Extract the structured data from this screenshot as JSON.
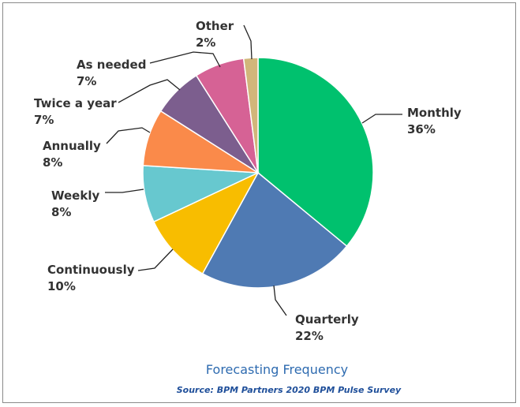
{
  "chart_data": {
    "type": "pie",
    "title": "Forecasting Frequency",
    "source": "Source: BPM Partners 2020 BPM Pulse Survey",
    "slices": [
      {
        "label": "Monthly",
        "value": 36,
        "value_label": "36%",
        "color": "#00c16e"
      },
      {
        "label": "Quarterly",
        "value": 22,
        "value_label": "22%",
        "color": "#4f7ab3"
      },
      {
        "label": "Continuously",
        "value": 10,
        "value_label": "10%",
        "color": "#f8bd00"
      },
      {
        "label": "Weekly",
        "value": 8,
        "value_label": "8%",
        "color": "#67c8cf"
      },
      {
        "label": "Annually",
        "value": 8,
        "value_label": "8%",
        "color": "#fa8a4a"
      },
      {
        "label": "Twice a year",
        "value": 7,
        "value_label": "7%",
        "color": "#7c5e8e"
      },
      {
        "label": "As needed",
        "value": 7,
        "value_label": "7%",
        "color": "#d66295"
      },
      {
        "label": "Other",
        "value": 2,
        "value_label": "2%",
        "color": "#d1b67a"
      }
    ]
  }
}
